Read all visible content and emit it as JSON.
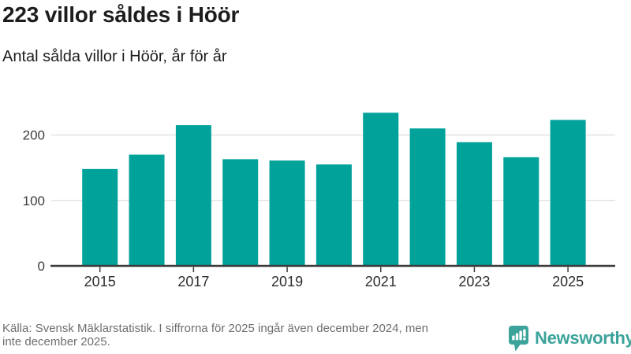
{
  "header": {
    "title": "223 villor såldes i Höör",
    "subtitle": "Antal sålda villor i Höör, år för år"
  },
  "chart_data": {
    "type": "bar",
    "categories": [
      "2015",
      "2016",
      "2017",
      "2018",
      "2019",
      "2020",
      "2021",
      "2022",
      "2023",
      "2024",
      "2025"
    ],
    "values": [
      148,
      170,
      215,
      163,
      161,
      155,
      234,
      210,
      189,
      166,
      223
    ],
    "title": "223 villor såldes i Höör",
    "subtitle": "Antal sålda villor i Höör, år för år",
    "xlabel": "",
    "ylabel": "",
    "ylim": [
      0,
      244
    ],
    "y_ticks": [
      0,
      100,
      200
    ],
    "x_tick_labels": [
      "2015",
      "2017",
      "2019",
      "2021",
      "2023",
      "2025"
    ],
    "x_tick_indices": [
      0,
      2,
      4,
      6,
      8,
      10
    ],
    "grid": "horizontal",
    "legend": false
  },
  "footer": {
    "source_lines": [
      "Källa: Svensk Mäklarstatistik. I siffrorna för 2025 ingår även december 2024, men",
      "inte december 2025."
    ],
    "brand": "Newsworthy"
  },
  "colors": {
    "bar": "#00a29a",
    "axis": "#3b3b3b",
    "grid": "#e3e3e3",
    "tick_label": "#2e2e2e",
    "y_label": "#3d3d3d",
    "text_dark": "#1d1d1d",
    "text_muted": "#6e6e6e",
    "brand_teal": "#3ba39a"
  }
}
